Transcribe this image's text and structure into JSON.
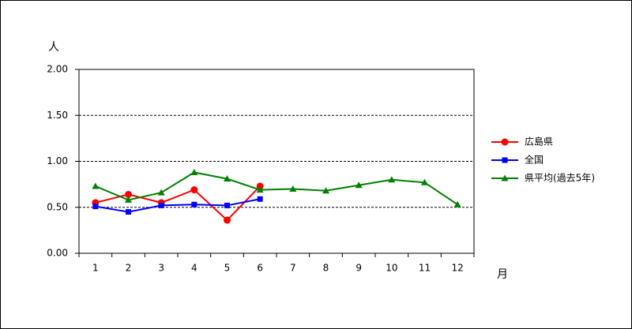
{
  "chart_data": {
    "type": "line",
    "y_label": "人",
    "x_label": "月",
    "categories": [
      "1",
      "2",
      "3",
      "4",
      "5",
      "6",
      "7",
      "8",
      "9",
      "10",
      "11",
      "12"
    ],
    "series": [
      {
        "name": "広島県",
        "color": "#ff0000",
        "marker": "circle",
        "values": [
          0.55,
          0.64,
          0.55,
          0.69,
          0.36,
          0.73,
          null,
          null,
          null,
          null,
          null,
          null
        ]
      },
      {
        "name": "全国",
        "color": "#0000ff",
        "marker": "square",
        "values": [
          0.51,
          0.45,
          0.52,
          0.53,
          0.52,
          0.59,
          null,
          null,
          null,
          null,
          null,
          null
        ]
      },
      {
        "name": "県平均(過去5年)",
        "color": "#008000",
        "marker": "triangle",
        "values": [
          0.73,
          0.58,
          0.66,
          0.88,
          0.81,
          0.69,
          0.7,
          0.68,
          0.74,
          0.8,
          0.77,
          0.53
        ]
      }
    ],
    "ylim": [
      0,
      2
    ],
    "yticks": [
      {
        "value": 0,
        "label": "0.00"
      },
      {
        "value": 0.5,
        "label": "0.50"
      },
      {
        "value": 1,
        "label": "1.00"
      },
      {
        "value": 1.5,
        "label": "1.50"
      },
      {
        "value": 2,
        "label": "2.00"
      }
    ],
    "grid": true,
    "legend": "right"
  }
}
